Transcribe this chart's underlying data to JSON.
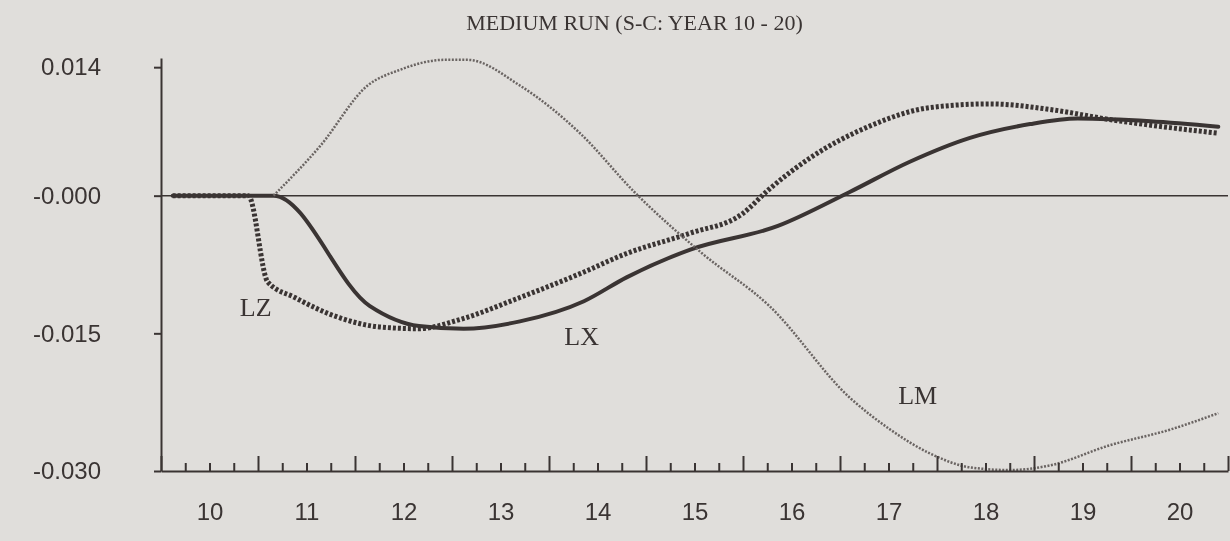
{
  "chart_data": {
    "type": "line",
    "title": "MEDIUM RUN (S-C: YEAR 10 - 20)",
    "xlim": [
      10,
      21
    ],
    "xticks": [
      {
        "value": 10,
        "label": null
      },
      {
        "value": 10.25,
        "label": null
      },
      {
        "value": 10.5,
        "label": "10"
      },
      {
        "value": 10.75,
        "label": null
      },
      {
        "value": 11,
        "label": null
      },
      {
        "value": 11.25,
        "label": null
      },
      {
        "value": 11.5,
        "label": "11"
      },
      {
        "value": 11.75,
        "label": null
      },
      {
        "value": 12,
        "label": null
      },
      {
        "value": 12.25,
        "label": null
      },
      {
        "value": 12.5,
        "label": "12"
      },
      {
        "value": 12.75,
        "label": null
      },
      {
        "value": 13,
        "label": null
      },
      {
        "value": 13.25,
        "label": null
      },
      {
        "value": 13.5,
        "label": "13"
      },
      {
        "value": 13.75,
        "label": null
      },
      {
        "value": 14,
        "label": null
      },
      {
        "value": 14.25,
        "label": null
      },
      {
        "value": 14.5,
        "label": "14"
      },
      {
        "value": 14.75,
        "label": null
      },
      {
        "value": 15,
        "label": null
      },
      {
        "value": 15.25,
        "label": null
      },
      {
        "value": 15.5,
        "label": "15"
      },
      {
        "value": 15.75,
        "label": null
      },
      {
        "value": 16,
        "label": null
      },
      {
        "value": 16.25,
        "label": null
      },
      {
        "value": 16.5,
        "label": "16"
      },
      {
        "value": 16.75,
        "label": null
      },
      {
        "value": 17,
        "label": null
      },
      {
        "value": 17.25,
        "label": null
      },
      {
        "value": 17.5,
        "label": "17"
      },
      {
        "value": 17.75,
        "label": null
      },
      {
        "value": 18,
        "label": null
      },
      {
        "value": 18.25,
        "label": null
      },
      {
        "value": 18.5,
        "label": "18"
      },
      {
        "value": 18.75,
        "label": null
      },
      {
        "value": 19,
        "label": null
      },
      {
        "value": 19.25,
        "label": null
      },
      {
        "value": 19.5,
        "label": "19"
      },
      {
        "value": 19.75,
        "label": null
      },
      {
        "value": 20,
        "label": null
      },
      {
        "value": 20.25,
        "label": null
      },
      {
        "value": 20.5,
        "label": "20"
      },
      {
        "value": 20.75,
        "label": null
      },
      {
        "value": 21,
        "label": null
      }
    ],
    "ylim": [
      -0.03,
      0.015
    ],
    "yticks": [
      0.014,
      {
        "value": 0,
        "label": "-0.000"
      },
      {
        "value": -0.015,
        "label": "-0.015"
      },
      {
        "value": -0.03,
        "label": "-0.030"
      }
    ],
    "ref_lines": [
      {
        "axis": "y",
        "value": 0,
        "color": "#3a3433",
        "line_style": "solid"
      }
    ],
    "series": [
      {
        "name": "LX",
        "color": "#3a3433",
        "line_style": "solid",
        "x": [
          10.12,
          11.16,
          12.15,
          12.66,
          13.12,
          13.7,
          14.36,
          14.8,
          15.45,
          16.36,
          17.1,
          17.72,
          18.34,
          18.96,
          19.45,
          20.2,
          20.9
        ],
        "values": [
          0,
          0,
          -0.012,
          -0.0142,
          -0.0145,
          -0.0137,
          -0.0115,
          -0.0089,
          -0.0059,
          -0.0033,
          0.0004,
          0.0037,
          0.0063,
          0.0078,
          0.0084,
          0.0081,
          0.0075
        ]
      },
      {
        "name": "LZ",
        "color": "#3a3433",
        "line_style": "dotted",
        "x": [
          10.12,
          10.9,
          11.1,
          11.38,
          11.84,
          12.25,
          12.66,
          13.08,
          13.7,
          14.32,
          14.8,
          15.45,
          15.99,
          16.27,
          16.69,
          17.31,
          17.93,
          18.55,
          19.16,
          19.78,
          20.9
        ],
        "values": [
          0,
          0,
          -0.0094,
          -0.0111,
          -0.0133,
          -0.0143,
          -0.0145,
          -0.0135,
          -0.0111,
          -0.0085,
          -0.0063,
          -0.0041,
          -0.002,
          0.0007,
          0.0041,
          0.0076,
          0.0096,
          0.01,
          0.0094,
          0.0083,
          0.0068
        ]
      },
      {
        "name": "LM",
        "color": "#6a6462",
        "line_style": "dashed",
        "x": [
          11.16,
          11.64,
          12.13,
          12.46,
          12.92,
          13.16,
          13.7,
          14.32,
          14.88,
          15.58,
          16.27,
          17.1,
          17.52,
          17.93,
          18.34,
          18.75,
          19.16,
          19.78,
          20.4,
          20.9
        ],
        "values": [
          0,
          0.0054,
          0.012,
          0.0137,
          0.0148,
          0.0148,
          0.012,
          0.0068,
          0.0004,
          -0.0063,
          -0.012,
          -0.022,
          -0.0255,
          -0.0281,
          -0.0296,
          -0.0299,
          -0.0294,
          -0.0272,
          -0.0255,
          -0.0237
        ]
      }
    ]
  }
}
